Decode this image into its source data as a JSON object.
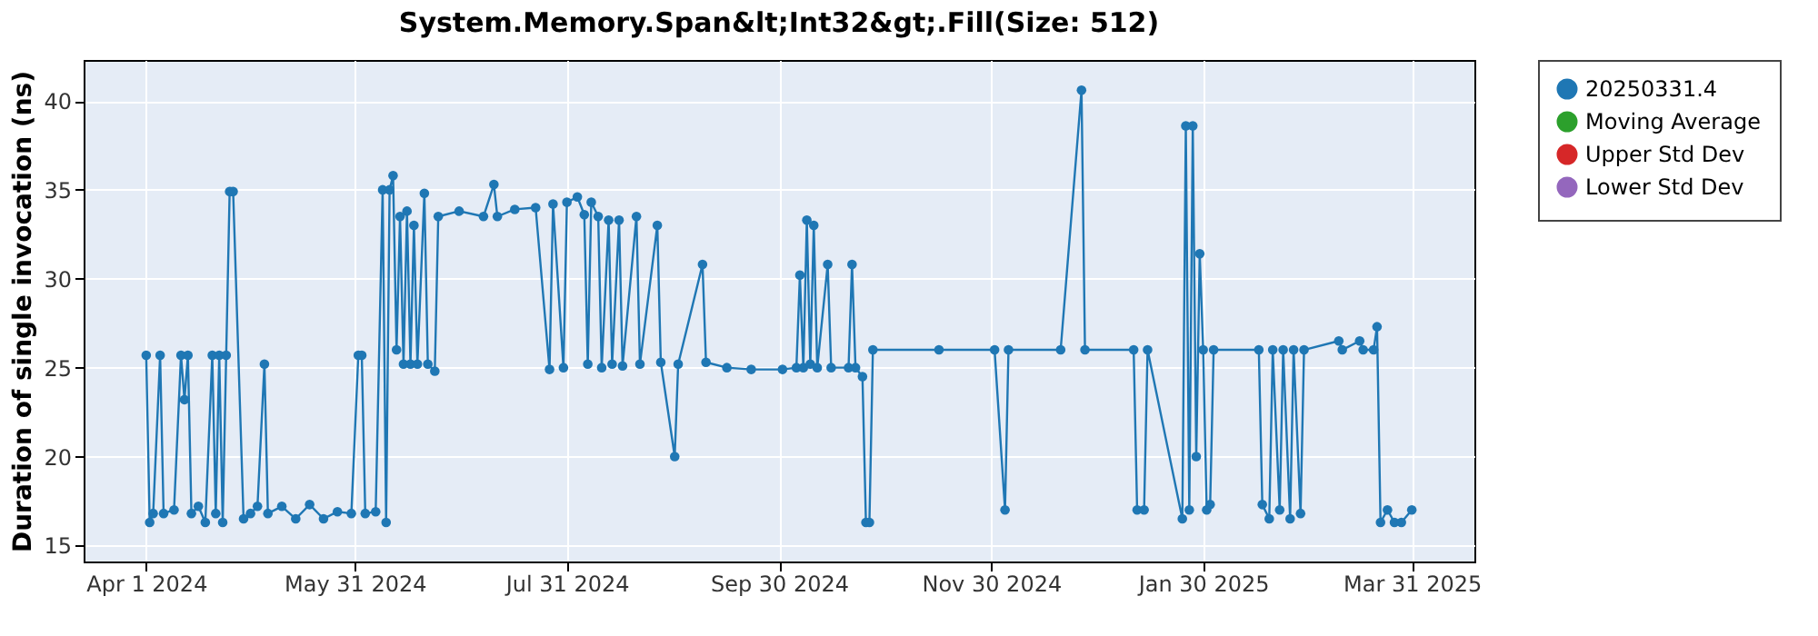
{
  "chart_data": {
    "type": "line",
    "title": "System.Memory.Span&lt;Int32&gt;.Fill(Size: 512)",
    "ylabel": "Duration of single invocation (ns)",
    "xlim": [
      "2024-03-14",
      "2025-04-18"
    ],
    "ylim": [
      14.1,
      42.3
    ],
    "yticks": [
      15,
      20,
      25,
      30,
      35,
      40
    ],
    "xticks": [
      {
        "value": "2024-04-01",
        "label": "Apr 1 2024"
      },
      {
        "value": "2024-05-31",
        "label": "May 31 2024"
      },
      {
        "value": "2024-07-31",
        "label": "Jul 31 2024"
      },
      {
        "value": "2024-09-30",
        "label": "Sep 30 2024"
      },
      {
        "value": "2024-11-30",
        "label": "Nov 30 2024"
      },
      {
        "value": "2025-01-30",
        "label": "Jan 30 2025"
      },
      {
        "value": "2025-03-31",
        "label": "Mar 31 2025"
      }
    ],
    "grid": true,
    "legend": "right",
    "marker": "circle",
    "series": [
      {
        "name": "20250331.4",
        "color": "#1f77b4",
        "x": [
          "2024-04-01",
          "2024-04-02",
          "2024-04-03",
          "2024-04-05",
          "2024-04-06",
          "2024-04-09",
          "2024-04-11",
          "2024-04-12",
          "2024-04-13",
          "2024-04-14",
          "2024-04-16",
          "2024-04-18",
          "2024-04-20",
          "2024-04-21",
          "2024-04-22",
          "2024-04-23",
          "2024-04-24",
          "2024-04-25",
          "2024-04-26",
          "2024-04-29",
          "2024-05-01",
          "2024-05-03",
          "2024-05-05",
          "2024-05-06",
          "2024-05-10",
          "2024-05-14",
          "2024-05-18",
          "2024-05-22",
          "2024-05-26",
          "2024-05-30",
          "2024-06-01",
          "2024-06-02",
          "2024-06-03",
          "2024-06-06",
          "2024-06-08",
          "2024-06-09",
          "2024-06-10",
          "2024-06-11",
          "2024-06-12",
          "2024-06-13",
          "2024-06-14",
          "2024-06-15",
          "2024-06-16",
          "2024-06-17",
          "2024-06-18",
          "2024-06-20",
          "2024-06-21",
          "2024-06-23",
          "2024-06-24",
          "2024-06-30",
          "2024-07-07",
          "2024-07-10",
          "2024-07-11",
          "2024-07-16",
          "2024-07-22",
          "2024-07-26",
          "2024-07-27",
          "2024-07-30",
          "2024-07-31",
          "2024-08-03",
          "2024-08-05",
          "2024-08-06",
          "2024-08-07",
          "2024-08-09",
          "2024-08-10",
          "2024-08-12",
          "2024-08-13",
          "2024-08-15",
          "2024-08-16",
          "2024-08-20",
          "2024-08-21",
          "2024-08-26",
          "2024-08-27",
          "2024-08-31",
          "2024-09-01",
          "2024-09-08",
          "2024-09-09",
          "2024-09-15",
          "2024-09-22",
          "2024-10-01",
          "2024-10-05",
          "2024-10-06",
          "2024-10-07",
          "2024-10-08",
          "2024-10-09",
          "2024-10-10",
          "2024-10-11",
          "2024-10-14",
          "2024-10-15",
          "2024-10-20",
          "2024-10-21",
          "2024-10-22",
          "2024-10-24",
          "2024-10-25",
          "2024-10-26",
          "2024-10-27",
          "2024-11-15",
          "2024-12-01",
          "2024-12-04",
          "2024-12-05",
          "2024-12-20",
          "2024-12-26",
          "2024-12-27",
          "2025-01-10",
          "2025-01-11",
          "2025-01-13",
          "2025-01-14",
          "2025-01-24",
          "2025-01-25",
          "2025-01-26",
          "2025-01-27",
          "2025-01-28",
          "2025-01-29",
          "2025-01-30",
          "2025-01-31",
          "2025-02-01",
          "2025-02-02",
          "2025-02-15",
          "2025-02-16",
          "2025-02-18",
          "2025-02-19",
          "2025-02-21",
          "2025-02-22",
          "2025-02-24",
          "2025-02-25",
          "2025-02-27",
          "2025-02-28",
          "2025-03-10",
          "2025-03-11",
          "2025-03-16",
          "2025-03-17",
          "2025-03-20",
          "2025-03-21",
          "2025-03-22",
          "2025-03-24",
          "2025-03-26",
          "2025-03-28",
          "2025-03-31"
        ],
        "values": [
          25.7,
          16.3,
          16.8,
          25.7,
          16.8,
          17.0,
          25.7,
          23.2,
          25.7,
          16.8,
          17.2,
          16.3,
          25.7,
          16.8,
          25.7,
          16.3,
          25.7,
          34.9,
          34.9,
          16.5,
          16.8,
          17.2,
          25.2,
          16.8,
          17.2,
          16.5,
          17.3,
          16.5,
          16.9,
          16.8,
          25.7,
          25.7,
          16.8,
          16.9,
          35.0,
          16.3,
          35.0,
          35.8,
          26.0,
          33.5,
          25.2,
          33.8,
          25.2,
          33.0,
          25.2,
          34.8,
          25.2,
          24.8,
          33.5,
          33.8,
          33.5,
          35.3,
          33.5,
          33.9,
          34.0,
          24.9,
          34.2,
          25.0,
          34.3,
          34.6,
          33.6,
          25.2,
          34.3,
          33.5,
          25.0,
          33.3,
          25.2,
          33.3,
          25.1,
          33.5,
          25.2,
          33.0,
          25.3,
          20.0,
          25.2,
          30.8,
          25.3,
          25.0,
          24.9,
          24.9,
          25.0,
          30.2,
          25.0,
          33.3,
          25.2,
          33.0,
          25.0,
          30.8,
          25.0,
          25.0,
          30.8,
          25.0,
          24.5,
          16.3,
          16.3,
          26.0,
          26.0,
          26.0,
          17.0,
          26.0,
          26.0,
          40.6,
          26.0,
          26.0,
          17.0,
          17.0,
          26.0,
          16.5,
          38.6,
          17.0,
          38.6,
          20.0,
          31.4,
          26.0,
          17.0,
          17.3,
          26.0,
          26.0,
          17.3,
          16.5,
          26.0,
          17.0,
          26.0,
          16.5,
          26.0,
          16.8,
          26.0,
          26.5,
          26.0,
          26.5,
          26.0,
          26.0,
          27.3,
          16.3,
          17.0,
          16.3,
          16.3,
          17.0
        ]
      },
      {
        "name": "Moving Average",
        "color": "#2ca02c"
      },
      {
        "name": "Upper Std Dev",
        "color": "#d62728"
      },
      {
        "name": "Lower Std Dev",
        "color": "#9467bd"
      }
    ]
  }
}
